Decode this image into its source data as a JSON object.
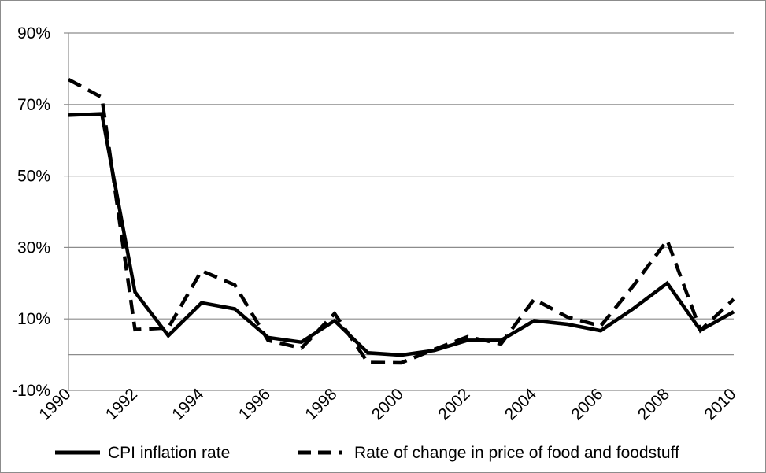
{
  "chart_data": {
    "type": "line",
    "title": "",
    "xlabel": "",
    "ylabel": "",
    "x": [
      1990,
      1991,
      1992,
      1993,
      1994,
      1995,
      1996,
      1997,
      1998,
      1999,
      2000,
      2001,
      2002,
      2003,
      2004,
      2005,
      2006,
      2007,
      2008,
      2009,
      2010
    ],
    "x_tick_labels": [
      "1990",
      "1992",
      "1994",
      "1996",
      "1998",
      "2000",
      "2002",
      "2004",
      "2006",
      "2008",
      "2010"
    ],
    "ylim": [
      -10,
      90
    ],
    "y_gridlines": [
      -10,
      0,
      10,
      30,
      50,
      70,
      90
    ],
    "y_tick_labels": [
      "-10%",
      "10%",
      "30%",
      "50%",
      "70%",
      "90%"
    ],
    "y_tick_values": [
      -10,
      10,
      30,
      50,
      70,
      90
    ],
    "grid": true,
    "legend_position": "bottom",
    "series": [
      {
        "name": "CPI inflation rate",
        "style": "solid",
        "color": "#000000",
        "values": [
          67.0,
          67.4,
          17.5,
          5.3,
          14.5,
          12.8,
          4.8,
          3.5,
          9.5,
          0.5,
          -0.1,
          1.2,
          4.0,
          4.0,
          9.5,
          8.5,
          6.7,
          13.0,
          20.0,
          6.8,
          12.0
        ]
      },
      {
        "name": "Rate of change in price of food and foodstuff",
        "style": "dashed",
        "color": "#000000",
        "values": [
          77.0,
          72.0,
          7.0,
          7.5,
          23.5,
          19.5,
          4.0,
          1.8,
          11.5,
          -2.2,
          -2.3,
          1.5,
          5.0,
          3.0,
          15.5,
          10.5,
          8.0,
          19.5,
          32.0,
          6.8,
          15.5
        ]
      }
    ]
  },
  "legend": {
    "items": [
      {
        "label": "CPI inflation rate"
      },
      {
        "label": "Rate of change in price of food and foodstuff"
      }
    ]
  }
}
